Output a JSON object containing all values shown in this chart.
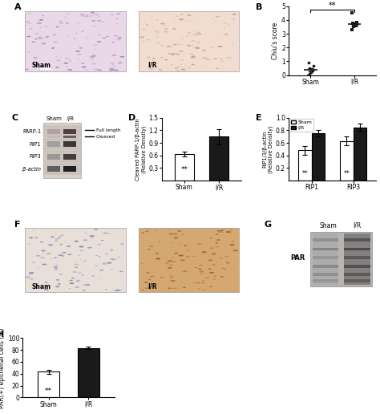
{
  "panel_B": {
    "ylabel": "Chiu's score",
    "xlabels": [
      "Sham",
      "I/R"
    ],
    "sham_dots": [
      0.0,
      0.1,
      0.2,
      0.3,
      0.5,
      0.7,
      0.9
    ],
    "ir_dots": [
      3.3,
      3.5,
      3.6,
      3.7,
      3.75,
      3.8,
      4.5
    ],
    "sham_mean": 0.38,
    "ir_mean": 3.7,
    "sham_sem": 0.13,
    "ir_sem": 0.14,
    "ylim": [
      0,
      5.0
    ],
    "yticks": [
      0.0,
      1.0,
      2.0,
      3.0,
      4.0,
      5.0
    ],
    "sig_text": "**"
  },
  "panel_D": {
    "ylabel": "Cleaved PARP-1/β-actin\n(Relative Density)",
    "xlabels": [
      "Sham",
      "I/R"
    ],
    "sham_val": 0.63,
    "ir_val": 1.05,
    "sham_err": 0.06,
    "ir_err": 0.18,
    "ylim": [
      0.0,
      1.5
    ],
    "yticks": [
      0.3,
      0.6,
      0.9,
      1.2,
      1.5
    ],
    "sig_text": "**"
  },
  "panel_E": {
    "ylabel": "RIP1/3/β-actin\n(Relative Density)",
    "groups": [
      "RIP1",
      "RIP3"
    ],
    "sham_vals": [
      0.48,
      0.63
    ],
    "ir_vals": [
      0.75,
      0.85
    ],
    "sham_errs": [
      0.07,
      0.07
    ],
    "ir_errs": [
      0.05,
      0.06
    ],
    "ylim": [
      0,
      1.0
    ],
    "yticks": [
      0.2,
      0.4,
      0.6,
      0.8,
      1.0
    ],
    "sig_text": "**"
  },
  "panel_H": {
    "ylabel": "PAR(+) epithelial cells (%)",
    "xlabels": [
      "Sham",
      "I/R"
    ],
    "sham_val": 43,
    "ir_val": 83,
    "sham_err": 3,
    "ir_err": 2,
    "ylim": [
      0,
      100
    ],
    "yticks": [
      0,
      20,
      40,
      60,
      80,
      100
    ],
    "sig_text": "**"
  },
  "colors": {
    "white_bar": "#ffffff",
    "black_bar": "#1a1a1a",
    "edge": "#000000",
    "dot": "#1a1a1a"
  },
  "panel_labels": [
    "A",
    "B",
    "C",
    "D",
    "E",
    "F",
    "G",
    "H"
  ],
  "wb_C": {
    "labels": [
      "PARP-1",
      "RIP1",
      "RIP3",
      "β-actin"
    ],
    "sham_cols": [
      "#b0a0a0",
      "#a0a0a0",
      "#989898",
      "#606060"
    ],
    "ir_cols": [
      "#504040",
      "#383838",
      "#404040",
      "#202020"
    ],
    "sham_cols2": [
      "#c8b8b8",
      "#b0b0b0",
      "#a8a8a8",
      "#686868"
    ],
    "ir_cols2": [
      "#686060",
      "#505050",
      "#585858",
      "#303030"
    ]
  },
  "wb_G": {
    "bg": "#a0a0a0",
    "sham_stripe": "#888888",
    "ir_stripe": "#606060",
    "band_light": "#909090",
    "band_dark": "#585858"
  }
}
